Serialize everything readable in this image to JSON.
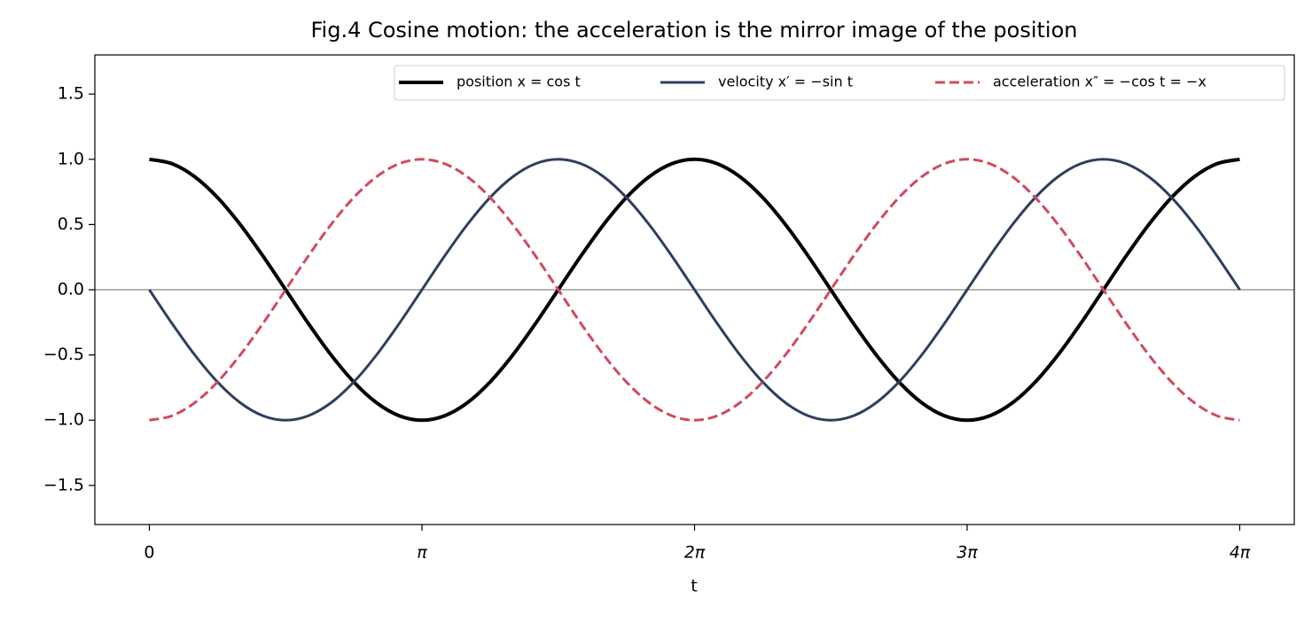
{
  "chart_data": {
    "type": "line",
    "title": "Fig.4 Cosine motion: the acceleration is the mirror image of the position",
    "x_label": "t",
    "x": [
      0,
      0.2618,
      0.5236,
      0.7854,
      1.0472,
      1.309,
      1.5708,
      1.8326,
      2.0944,
      2.3562,
      2.618,
      2.8798,
      3.1416,
      3.4034,
      3.6652,
      3.927,
      4.1888,
      4.4506,
      4.7124,
      4.9742,
      5.236,
      5.4978,
      5.7596,
      6.0214,
      6.2832,
      6.545,
      6.8068,
      7.0686,
      7.3304,
      7.5922,
      7.854,
      8.1158,
      8.3776,
      8.6394,
      8.9012,
      9.163,
      9.4248,
      9.6866,
      9.9484,
      10.2102,
      10.472,
      10.7338,
      10.9956,
      11.2574,
      11.5192,
      11.781,
      12.0428,
      12.3046,
      12.5664
    ],
    "series": [
      {
        "name": "position x = cos t",
        "color": "#000000",
        "width": 4,
        "dashed": false,
        "values": [
          1,
          0.966,
          0.866,
          0.707,
          0.5,
          0.259,
          0,
          -0.259,
          -0.5,
          -0.707,
          -0.866,
          -0.966,
          -1,
          -0.966,
          -0.866,
          -0.707,
          -0.5,
          -0.259,
          0,
          0.259,
          0.5,
          0.707,
          0.866,
          0.966,
          1,
          0.966,
          0.866,
          0.707,
          0.5,
          0.259,
          0,
          -0.259,
          -0.5,
          -0.707,
          -0.866,
          -0.966,
          -1,
          -0.966,
          -0.866,
          -0.707,
          -0.5,
          -0.259,
          0,
          0.259,
          0.5,
          0.707,
          0.866,
          0.966,
          1
        ]
      },
      {
        "name": "velocity x′ = −sin t",
        "color": "#2e3f5c",
        "width": 3,
        "dashed": false,
        "values": [
          0,
          -0.259,
          -0.5,
          -0.707,
          -0.866,
          -0.966,
          -1,
          -0.966,
          -0.866,
          -0.707,
          -0.5,
          -0.259,
          0,
          0.259,
          0.5,
          0.707,
          0.866,
          0.966,
          1,
          0.966,
          0.866,
          0.707,
          0.5,
          0.259,
          0,
          -0.259,
          -0.5,
          -0.707,
          -0.866,
          -0.966,
          -1,
          -0.966,
          -0.866,
          -0.707,
          -0.5,
          -0.259,
          0,
          0.259,
          0.5,
          0.707,
          0.866,
          0.966,
          1,
          0.966,
          0.866,
          0.707,
          0.5,
          0.259,
          0
        ]
      },
      {
        "name": "acceleration x″ = −cos t = −x",
        "color": "#d04a5e",
        "width": 3,
        "dashed": true,
        "values": [
          -1,
          -0.966,
          -0.866,
          -0.707,
          -0.5,
          -0.259,
          0,
          0.259,
          0.5,
          0.707,
          0.866,
          0.966,
          1,
          0.966,
          0.866,
          0.707,
          0.5,
          0.259,
          0,
          -0.259,
          -0.5,
          -0.707,
          -0.866,
          -0.966,
          -1,
          -0.966,
          -0.866,
          -0.707,
          -0.5,
          -0.259,
          0,
          0.259,
          0.5,
          0.707,
          0.866,
          0.966,
          1,
          0.966,
          0.866,
          0.707,
          0.5,
          0.259,
          0,
          -0.259,
          -0.5,
          -0.707,
          -0.866,
          -0.966,
          -1
        ]
      }
    ],
    "xlim": [
      -0.628,
      13.195
    ],
    "ylim": [
      -1.8,
      1.8
    ],
    "xticks": [
      0,
      {
        "value": 3.1416,
        "label": "π"
      },
      {
        "value": 6.2832,
        "label": "2π"
      },
      {
        "value": 9.4248,
        "label": "3π"
      },
      {
        "value": 12.5664,
        "label": "4π"
      }
    ],
    "yticks": [
      {
        "value": -1.5,
        "label": "−1.5"
      },
      {
        "value": -1,
        "label": "−1.0"
      },
      {
        "value": -0.5,
        "label": "−0.5"
      },
      {
        "value": 0,
        "label": "0.0"
      },
      0.5,
      {
        "value": 1,
        "label": "1.0"
      },
      1.5
    ],
    "grid": false,
    "legend": "upper right"
  }
}
